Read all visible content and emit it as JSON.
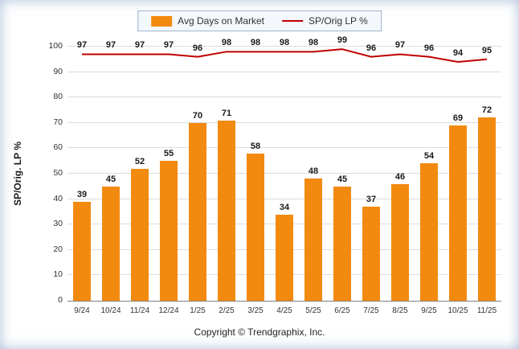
{
  "legend": {
    "items": [
      {
        "label": "Avg Days on Market",
        "type": "bar"
      },
      {
        "label": "SP/Orig LP %",
        "type": "line"
      }
    ]
  },
  "footer": {
    "copyright": "Copyright © Trendgraphix, Inc."
  },
  "colors": {
    "bar": "#F28A10",
    "line": "#C00000",
    "gridline": "#DCDCDC",
    "axis": "#808080",
    "text": "#333333",
    "legend_border": "#9DB4CF",
    "legend_bg": "#F4F7FB"
  },
  "chart_data": {
    "type": "combo",
    "categories": [
      "9/24",
      "10/24",
      "11/24",
      "12/24",
      "1/25",
      "2/25",
      "3/25",
      "4/25",
      "5/25",
      "6/25",
      "7/25",
      "8/25",
      "9/25",
      "10/25",
      "11/25"
    ],
    "series": [
      {
        "name": "Avg Days on Market",
        "type": "bar",
        "values": [
          39,
          45,
          52,
          55,
          70,
          71,
          58,
          34,
          48,
          45,
          37,
          46,
          54,
          69,
          72
        ]
      },
      {
        "name": "SP/Orig LP %",
        "type": "line",
        "values": [
          97,
          97,
          97,
          97,
          96,
          98,
          98,
          98,
          98,
          99,
          96,
          97,
          96,
          94,
          95
        ]
      }
    ],
    "title": "",
    "xlabel": "",
    "ylabel": "SP/Orig. LP %",
    "ylim": [
      0,
      100
    ],
    "ytick_step": 10,
    "grid": true,
    "legend_position": "top"
  }
}
